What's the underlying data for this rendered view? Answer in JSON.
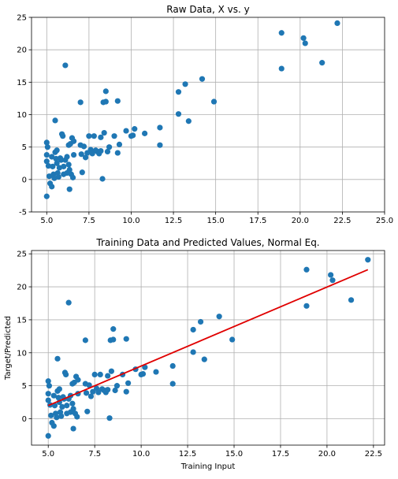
{
  "colors": {
    "points": "#1f77b4",
    "fit_line": "#e00000",
    "grid": "#b0b0b0",
    "axes": "#000000"
  },
  "chart_data": [
    {
      "type": "scatter",
      "title": "Raw Data, X vs. y",
      "xlabel": "",
      "ylabel": "",
      "xlim": [
        4.1,
        25.0
      ],
      "ylim": [
        -5,
        25
      ],
      "xticks": [
        5.0,
        7.5,
        10.0,
        12.5,
        15.0,
        17.5,
        20.0,
        22.5,
        25.0
      ],
      "xtick_labels": [
        "5.0",
        "7.5",
        "10.0",
        "12.5",
        "15.0",
        "17.5",
        "20.0",
        "22.5",
        "25.0"
      ],
      "yticks": [
        -5,
        0,
        5,
        10,
        15,
        20,
        25
      ],
      "ytick_labels": [
        "-5",
        "0",
        "5",
        "10",
        "15",
        "20",
        "25"
      ],
      "grid": true,
      "points": [
        [
          5.0,
          5.7
        ],
        [
          5.0,
          3.8
        ],
        [
          5.0,
          2.8
        ],
        [
          5.05,
          5.0
        ],
        [
          5.1,
          2.1
        ],
        [
          5.15,
          0.5
        ],
        [
          5.2,
          -0.6
        ],
        [
          5.3,
          -1.1
        ],
        [
          5.0,
          -2.6
        ],
        [
          5.3,
          3.5
        ],
        [
          5.35,
          2.0
        ],
        [
          5.4,
          0.8
        ],
        [
          5.45,
          0.2
        ],
        [
          5.5,
          9.1
        ],
        [
          5.5,
          4.2
        ],
        [
          5.55,
          3.2
        ],
        [
          5.6,
          4.5
        ],
        [
          5.6,
          2.5
        ],
        [
          5.65,
          1.0
        ],
        [
          5.7,
          0.4
        ],
        [
          5.75,
          1.8
        ],
        [
          5.8,
          3.3
        ],
        [
          5.85,
          3.0
        ],
        [
          5.9,
          7.0
        ],
        [
          5.95,
          6.7
        ],
        [
          6.0,
          2.0
        ],
        [
          6.0,
          0.8
        ],
        [
          6.1,
          17.6
        ],
        [
          6.1,
          3.0
        ],
        [
          6.2,
          1.0
        ],
        [
          6.2,
          3.5
        ],
        [
          6.3,
          5.3
        ],
        [
          6.3,
          2.3
        ],
        [
          6.35,
          1.5
        ],
        [
          6.35,
          -1.5
        ],
        [
          6.4,
          5.5
        ],
        [
          6.45,
          0.8
        ],
        [
          6.5,
          6.4
        ],
        [
          6.55,
          0.3
        ],
        [
          6.6,
          3.8
        ],
        [
          6.6,
          5.9
        ],
        [
          7.0,
          11.9
        ],
        [
          7.0,
          5.3
        ],
        [
          7.05,
          3.9
        ],
        [
          7.1,
          1.1
        ],
        [
          7.2,
          5.1
        ],
        [
          7.3,
          3.4
        ],
        [
          7.4,
          4.1
        ],
        [
          7.5,
          6.7
        ],
        [
          7.6,
          4.6
        ],
        [
          7.7,
          4.0
        ],
        [
          7.8,
          6.7
        ],
        [
          7.9,
          4.5
        ],
        [
          8.0,
          4.3
        ],
        [
          8.1,
          4.0
        ],
        [
          8.2,
          6.5
        ],
        [
          8.2,
          4.4
        ],
        [
          8.3,
          0.1
        ],
        [
          8.35,
          11.9
        ],
        [
          8.4,
          7.2
        ],
        [
          8.5,
          12.0
        ],
        [
          8.5,
          13.6
        ],
        [
          8.6,
          4.3
        ],
        [
          8.7,
          5.0
        ],
        [
          9.0,
          6.7
        ],
        [
          9.2,
          12.1
        ],
        [
          9.2,
          4.1
        ],
        [
          9.3,
          5.4
        ],
        [
          9.7,
          7.5
        ],
        [
          10.0,
          6.7
        ],
        [
          10.1,
          6.8
        ],
        [
          10.2,
          7.8
        ],
        [
          10.8,
          7.1
        ],
        [
          11.7,
          5.3
        ],
        [
          11.7,
          8.0
        ],
        [
          12.8,
          13.5
        ],
        [
          12.8,
          10.1
        ],
        [
          13.2,
          14.7
        ],
        [
          13.4,
          9.0
        ],
        [
          14.2,
          15.5
        ],
        [
          14.9,
          12.0
        ],
        [
          18.9,
          22.6
        ],
        [
          18.9,
          17.1
        ],
        [
          20.2,
          21.8
        ],
        [
          20.3,
          21.0
        ],
        [
          21.3,
          18.0
        ],
        [
          22.2,
          24.1
        ]
      ]
    },
    {
      "type": "scatter",
      "title": "Training Data and Predicted Values, Normal Eq.",
      "xlabel": "Training Input",
      "ylabel": "Target/Predicted",
      "xlim": [
        4.1,
        23.1
      ],
      "ylim": [
        -4,
        25.5
      ],
      "xticks": [
        5.0,
        7.5,
        10.0,
        12.5,
        15.0,
        17.5,
        20.0,
        22.5
      ],
      "xtick_labels": [
        "5.0",
        "7.5",
        "10.0",
        "12.5",
        "15.0",
        "17.5",
        "20.0",
        "22.5"
      ],
      "yticks": [
        0,
        5,
        10,
        15,
        20,
        25
      ],
      "ytick_labels": [
        "0",
        "5",
        "10",
        "15",
        "20",
        "25"
      ],
      "grid": true,
      "fit_line": {
        "x": [
          5.0,
          22.2
        ],
        "y": [
          2.0,
          22.6
        ]
      },
      "points": [
        [
          5.0,
          5.7
        ],
        [
          5.0,
          3.8
        ],
        [
          5.0,
          2.8
        ],
        [
          5.05,
          5.0
        ],
        [
          5.1,
          2.1
        ],
        [
          5.15,
          0.5
        ],
        [
          5.2,
          -0.6
        ],
        [
          5.3,
          -1.1
        ],
        [
          5.0,
          -2.6
        ],
        [
          5.3,
          3.5
        ],
        [
          5.35,
          2.0
        ],
        [
          5.4,
          0.8
        ],
        [
          5.45,
          0.2
        ],
        [
          5.5,
          9.1
        ],
        [
          5.5,
          4.2
        ],
        [
          5.55,
          3.2
        ],
        [
          5.6,
          4.5
        ],
        [
          5.6,
          2.5
        ],
        [
          5.65,
          1.0
        ],
        [
          5.7,
          0.4
        ],
        [
          5.75,
          1.8
        ],
        [
          5.8,
          3.3
        ],
        [
          5.85,
          3.0
        ],
        [
          5.9,
          7.0
        ],
        [
          5.95,
          6.7
        ],
        [
          6.0,
          2.0
        ],
        [
          6.0,
          0.8
        ],
        [
          6.1,
          17.6
        ],
        [
          6.1,
          3.0
        ],
        [
          6.2,
          1.0
        ],
        [
          6.2,
          3.5
        ],
        [
          6.3,
          5.3
        ],
        [
          6.3,
          2.3
        ],
        [
          6.35,
          1.5
        ],
        [
          6.35,
          -1.5
        ],
        [
          6.4,
          5.5
        ],
        [
          6.45,
          0.8
        ],
        [
          6.5,
          6.4
        ],
        [
          6.55,
          0.3
        ],
        [
          6.6,
          3.8
        ],
        [
          6.6,
          5.9
        ],
        [
          7.0,
          11.9
        ],
        [
          7.0,
          5.3
        ],
        [
          7.05,
          3.9
        ],
        [
          7.1,
          1.1
        ],
        [
          7.2,
          5.1
        ],
        [
          7.3,
          3.4
        ],
        [
          7.4,
          4.1
        ],
        [
          7.5,
          6.7
        ],
        [
          7.6,
          4.6
        ],
        [
          7.7,
          4.0
        ],
        [
          7.8,
          6.7
        ],
        [
          7.9,
          4.5
        ],
        [
          8.0,
          4.3
        ],
        [
          8.1,
          4.0
        ],
        [
          8.2,
          6.5
        ],
        [
          8.2,
          4.4
        ],
        [
          8.3,
          0.1
        ],
        [
          8.35,
          11.9
        ],
        [
          8.4,
          7.2
        ],
        [
          8.5,
          12.0
        ],
        [
          8.5,
          13.6
        ],
        [
          8.6,
          4.3
        ],
        [
          8.7,
          5.0
        ],
        [
          9.0,
          6.7
        ],
        [
          9.2,
          12.1
        ],
        [
          9.2,
          4.1
        ],
        [
          9.3,
          5.4
        ],
        [
          9.7,
          7.5
        ],
        [
          10.0,
          6.7
        ],
        [
          10.1,
          6.8
        ],
        [
          10.2,
          7.8
        ],
        [
          10.8,
          7.1
        ],
        [
          11.7,
          5.3
        ],
        [
          11.7,
          8.0
        ],
        [
          12.8,
          13.5
        ],
        [
          12.8,
          10.1
        ],
        [
          13.2,
          14.7
        ],
        [
          13.4,
          9.0
        ],
        [
          14.2,
          15.5
        ],
        [
          14.9,
          12.0
        ],
        [
          18.9,
          22.6
        ],
        [
          18.9,
          17.1
        ],
        [
          20.2,
          21.8
        ],
        [
          20.3,
          21.0
        ],
        [
          21.3,
          18.0
        ],
        [
          22.2,
          24.1
        ]
      ]
    }
  ]
}
